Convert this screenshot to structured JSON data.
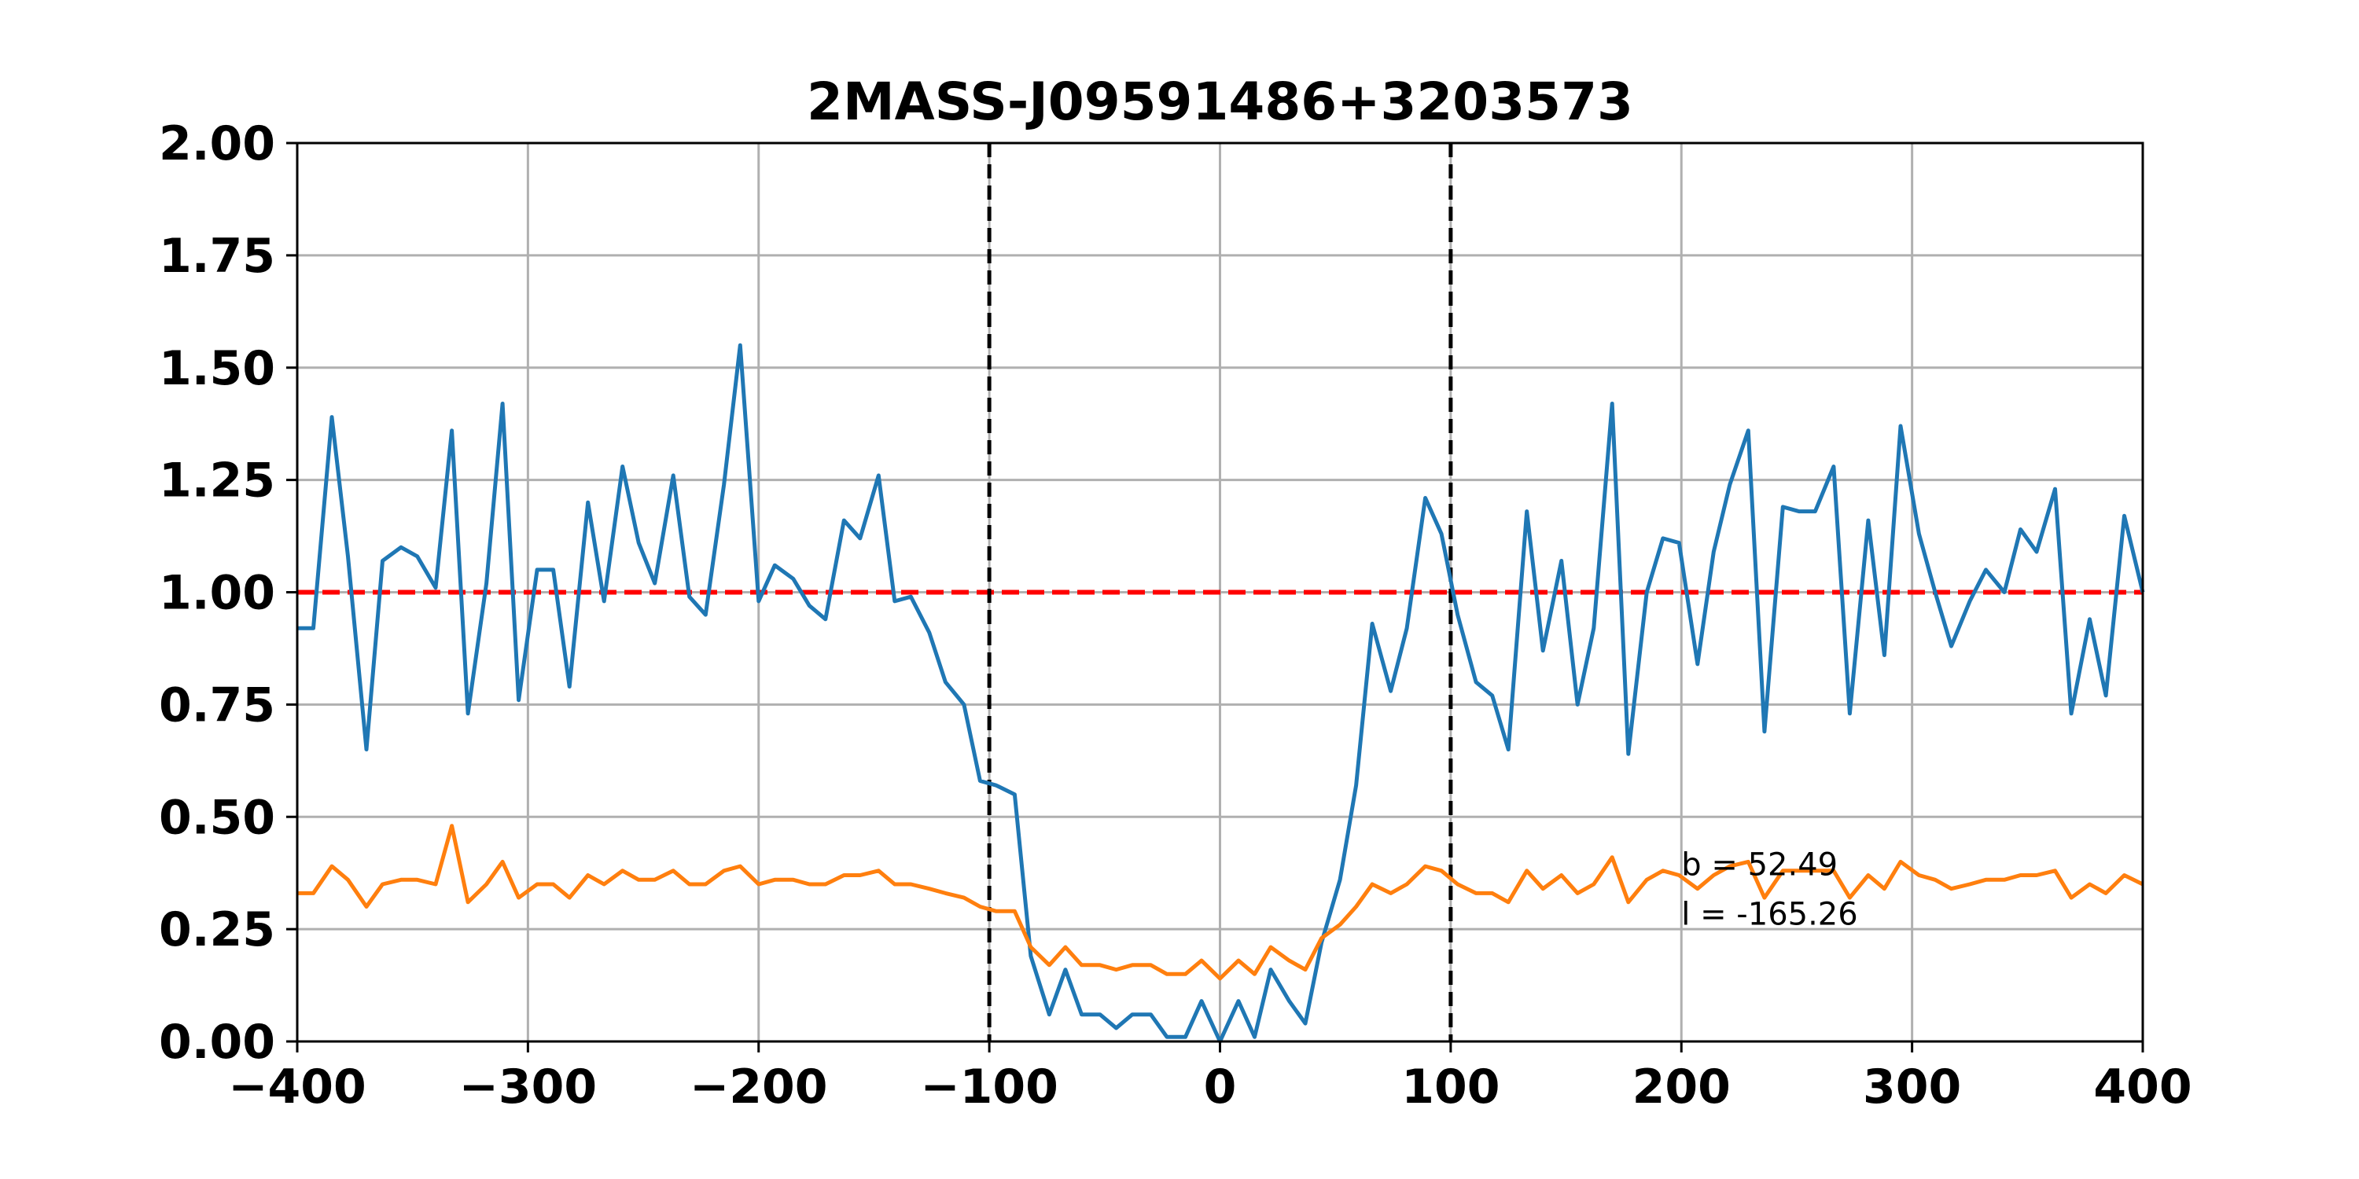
{
  "chart_data": {
    "type": "line",
    "title": "2MASS-J09591486+3203573",
    "xlabel": "",
    "ylabel": "",
    "xlim": [
      -400,
      400
    ],
    "ylim": [
      0.0,
      2.0
    ],
    "xticks": [
      -400,
      -300,
      -200,
      -100,
      0,
      100,
      200,
      300,
      400
    ],
    "xtick_labels": [
      "−400",
      "−300",
      "−200",
      "−100",
      "0",
      "100",
      "200",
      "300",
      "400"
    ],
    "yticks": [
      0,
      0.25,
      0.5,
      0.75,
      1.0,
      1.25,
      1.5,
      1.75,
      2.0
    ],
    "ytick_labels": [
      "0.00",
      "0.25",
      "0.50",
      "0.75",
      "1.00",
      "1.25",
      "1.50",
      "1.75",
      "2.00"
    ],
    "grid": true,
    "reference_lines": {
      "horizontal": {
        "y": 1.0,
        "style": "dashed",
        "color": "#ff0000"
      },
      "vertical": [
        {
          "x": -100,
          "style": "dashed",
          "color": "#000000"
        },
        {
          "x": 100,
          "style": "dashed",
          "color": "#000000"
        }
      ]
    },
    "annotations": [
      {
        "text": "b = 52.49",
        "x": 200,
        "y": 0.37
      },
      {
        "text": "l = -165.26",
        "x": 200,
        "y": 0.26
      }
    ],
    "series": [
      {
        "color": "#1f77b4",
        "x": [
          -400,
          -393,
          -385,
          -378,
          -370,
          -363,
          -355,
          -348,
          -340,
          -333,
          -326,
          -318,
          -311,
          -304,
          -296,
          -289,
          -282,
          -274,
          -267,
          -259,
          -252,
          -245,
          -237,
          -230,
          -223,
          -215,
          -208,
          -200,
          -193,
          -185,
          -178,
          -171,
          -163,
          -156,
          -148,
          -141,
          -134,
          -126,
          -119,
          -111,
          -104,
          -97,
          -89,
          -82,
          -74,
          -67,
          -60,
          -52,
          -45,
          -38,
          -30,
          -23,
          -15,
          -8,
          0,
          8,
          15,
          22,
          30,
          37,
          44,
          52,
          59,
          66,
          74,
          81,
          89,
          96,
          103,
          111,
          118,
          125,
          133,
          140,
          148,
          155,
          162,
          170,
          177,
          185,
          192,
          199,
          207,
          214,
          221,
          229,
          236,
          244,
          251,
          258,
          266,
          273,
          281,
          288,
          295,
          303,
          310,
          317,
          325,
          332,
          340,
          347,
          354,
          362,
          369,
          377,
          384,
          392,
          400
        ],
        "y": [
          0.92,
          0.92,
          1.39,
          1.08,
          0.65,
          1.07,
          1.1,
          1.08,
          1.01,
          1.36,
          0.73,
          1.02,
          1.42,
          0.76,
          1.05,
          1.05,
          0.79,
          1.2,
          0.98,
          1.28,
          1.11,
          1.02,
          1.26,
          0.99,
          0.95,
          1.24,
          1.55,
          0.98,
          1.06,
          1.03,
          0.97,
          0.94,
          1.16,
          1.12,
          1.26,
          0.98,
          0.99,
          0.91,
          0.8,
          0.75,
          0.58,
          0.57,
          0.55,
          0.19,
          0.06,
          0.16,
          0.06,
          0.06,
          0.03,
          0.06,
          0.06,
          0.01,
          0.01,
          0.09,
          0.0,
          0.09,
          0.01,
          0.16,
          0.09,
          0.04,
          0.22,
          0.36,
          0.57,
          0.93,
          0.78,
          0.92,
          1.21,
          1.13,
          0.95,
          0.8,
          0.77,
          0.65,
          1.18,
          0.87,
          1.07,
          0.75,
          0.92,
          1.42,
          0.64,
          1.0,
          1.12,
          1.11,
          0.84,
          1.09,
          1.24,
          1.36,
          0.69,
          1.19,
          1.18,
          1.18,
          1.28,
          0.73,
          1.16,
          0.86,
          1.37,
          1.13,
          1.0,
          0.88,
          0.98,
          1.05,
          1.0,
          1.14,
          1.09,
          1.23,
          0.73,
          0.94,
          0.77,
          1.17,
          1.0
        ]
      },
      {
        "color": "#ff7f0e",
        "x": [
          -400,
          -393,
          -385,
          -378,
          -370,
          -363,
          -355,
          -348,
          -340,
          -333,
          -326,
          -318,
          -311,
          -304,
          -296,
          -289,
          -282,
          -274,
          -267,
          -259,
          -252,
          -245,
          -237,
          -230,
          -223,
          -215,
          -208,
          -200,
          -193,
          -185,
          -178,
          -171,
          -163,
          -156,
          -148,
          -141,
          -134,
          -126,
          -119,
          -111,
          -104,
          -97,
          -89,
          -82,
          -74,
          -67,
          -60,
          -52,
          -45,
          -38,
          -30,
          -23,
          -15,
          -8,
          0,
          8,
          15,
          22,
          30,
          37,
          44,
          52,
          59,
          66,
          74,
          81,
          89,
          96,
          103,
          111,
          118,
          125,
          133,
          140,
          148,
          155,
          162,
          170,
          177,
          185,
          192,
          199,
          207,
          214,
          221,
          229,
          236,
          244,
          251,
          258,
          266,
          273,
          281,
          288,
          295,
          303,
          310,
          317,
          325,
          332,
          340,
          347,
          354,
          362,
          369,
          377,
          384,
          392,
          400
        ],
        "y": [
          0.33,
          0.33,
          0.39,
          0.36,
          0.3,
          0.35,
          0.36,
          0.36,
          0.35,
          0.48,
          0.31,
          0.35,
          0.4,
          0.32,
          0.35,
          0.35,
          0.32,
          0.37,
          0.35,
          0.38,
          0.36,
          0.36,
          0.38,
          0.35,
          0.35,
          0.38,
          0.39,
          0.35,
          0.36,
          0.36,
          0.35,
          0.35,
          0.37,
          0.37,
          0.38,
          0.35,
          0.35,
          0.34,
          0.33,
          0.32,
          0.3,
          0.29,
          0.29,
          0.21,
          0.17,
          0.21,
          0.17,
          0.17,
          0.16,
          0.17,
          0.17,
          0.15,
          0.15,
          0.18,
          0.14,
          0.18,
          0.15,
          0.21,
          0.18,
          0.16,
          0.23,
          0.26,
          0.3,
          0.35,
          0.33,
          0.35,
          0.39,
          0.38,
          0.35,
          0.33,
          0.33,
          0.31,
          0.38,
          0.34,
          0.37,
          0.33,
          0.35,
          0.41,
          0.31,
          0.36,
          0.38,
          0.37,
          0.34,
          0.37,
          0.39,
          0.4,
          0.32,
          0.38,
          0.38,
          0.38,
          0.38,
          0.32,
          0.37,
          0.34,
          0.4,
          0.37,
          0.36,
          0.34,
          0.35,
          0.36,
          0.36,
          0.37,
          0.37,
          0.38,
          0.32,
          0.35,
          0.33,
          0.37,
          0.35
        ]
      }
    ]
  }
}
